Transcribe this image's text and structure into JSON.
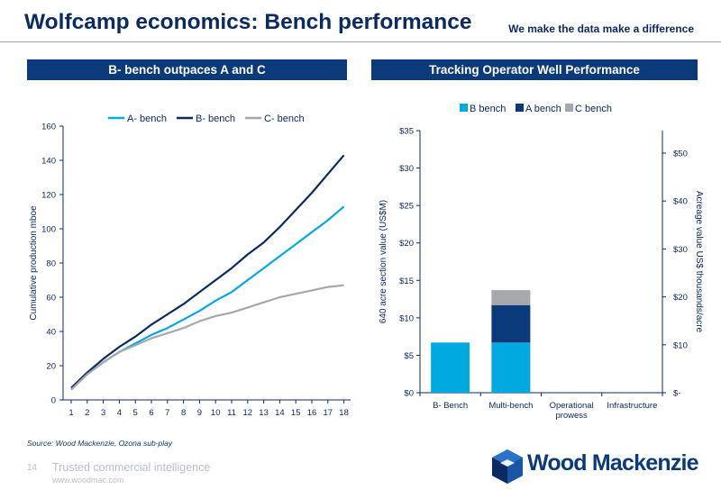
{
  "header": {
    "title": "Wolfcamp economics: Bench performance",
    "tagline": "We make the data make a difference"
  },
  "left_panel": {
    "banner": "B- bench outpaces A and C"
  },
  "right_panel": {
    "banner": "Tracking Operator Well Performance"
  },
  "colors": {
    "a_bench": "#00a9e0",
    "b_bench": "#0b2a62",
    "c_bench": "#a6a8ab",
    "banner": "#0b3a7a",
    "text": "#0b2a62"
  },
  "chart_data": [
    {
      "type": "line",
      "ylabel": "Cumulative production mboe",
      "xlabel": "",
      "x": [
        1,
        2,
        3,
        4,
        5,
        6,
        7,
        8,
        9,
        10,
        11,
        12,
        13,
        14,
        15,
        16,
        17,
        18
      ],
      "x_tick_labels": [
        "1",
        "2",
        "3",
        "4",
        "5",
        "6",
        "7",
        "8",
        "9",
        "10",
        "11",
        "12",
        "13",
        "14",
        "15",
        "16",
        "17",
        "18"
      ],
      "ylim": [
        0,
        160
      ],
      "y_ticks": [
        0,
        20,
        40,
        60,
        80,
        100,
        120,
        140,
        160
      ],
      "y_tick_labels": [
        "0",
        "20",
        "40",
        "60",
        "80",
        "100",
        "120",
        "140",
        "160"
      ],
      "grid": false,
      "legend_position": "top",
      "series": [
        {
          "name": "A- bench",
          "color": "#00a9e0",
          "values": [
            6,
            15,
            22,
            28,
            33,
            38,
            42,
            47,
            52,
            58,
            63,
            70,
            77,
            84,
            91,
            98,
            105,
            113
          ]
        },
        {
          "name": "B- bench",
          "color": "#0b2a62",
          "values": [
            7,
            16,
            24,
            31,
            37,
            44,
            50,
            56,
            63,
            70,
            77,
            85,
            92,
            101,
            111,
            121,
            132,
            143
          ]
        },
        {
          "name": "C- bench",
          "color": "#a6a8ab",
          "values": [
            6,
            15,
            22,
            28,
            32,
            36,
            39,
            42,
            46,
            49,
            51,
            54,
            57,
            60,
            62,
            64,
            66,
            67
          ]
        }
      ]
    },
    {
      "type": "bar",
      "stacked": true,
      "ylabel": "640 acre section value (US$M)",
      "y2label": "Acreage value US$ thousands/acre",
      "categories": [
        "B- Bench",
        "Multi-bench",
        "Operational\nprowess",
        "Infrastructure"
      ],
      "category_lines": [
        [
          "B- Bench"
        ],
        [
          "Multi-bench"
        ],
        [
          "Operational",
          "prowess"
        ],
        [
          "Infrastructure"
        ]
      ],
      "ylim": [
        0,
        35
      ],
      "y_ticks": [
        0,
        5,
        10,
        15,
        20,
        25,
        30,
        35
      ],
      "y_tick_labels": [
        "$0",
        "$5",
        "$10",
        "$15",
        "$20",
        "$25",
        "$30",
        "$35"
      ],
      "y2lim": [
        0,
        54.7
      ],
      "y2_ticks": [
        0,
        10,
        20,
        30,
        40,
        50
      ],
      "y2_tick_labels": [
        "$-",
        "$10",
        "$20",
        "$30",
        "$40",
        "$50"
      ],
      "legend_position": "top",
      "series": [
        {
          "name": "B bench",
          "color": "#00a9e0",
          "values": [
            6.7,
            6.7,
            0,
            0
          ]
        },
        {
          "name": "A bench",
          "color": "#0b3a7a",
          "values": [
            0,
            5.0,
            0,
            0
          ]
        },
        {
          "name": "C bench",
          "color": "#a6a8ab",
          "values": [
            0,
            2.0,
            0,
            0
          ]
        }
      ]
    }
  ],
  "footer": {
    "source": "Source: Wood Mackenzie, Ozona sub-play",
    "page_number": "14",
    "tagline": "Trusted commercial intelligence",
    "url": "www.woodmac.com",
    "logo_text": "Wood Mackenzie"
  }
}
